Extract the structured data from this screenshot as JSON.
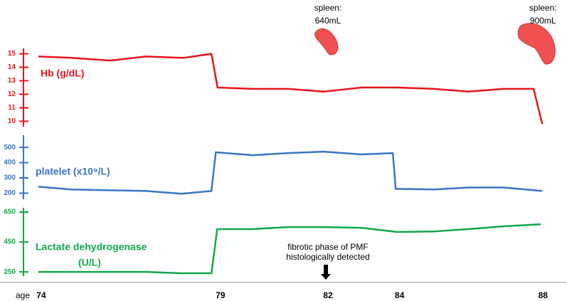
{
  "x_axis": {
    "label": "age",
    "ticks": [
      74,
      79,
      82,
      84,
      88
    ],
    "lim": [
      72.85,
      88.67
    ]
  },
  "annotations": [
    {
      "lines": [
        "spleen:",
        "640mL"
      ],
      "x": 82
    },
    {
      "lines": [
        "spleen:",
        "900mL"
      ],
      "x": 88
    },
    {
      "lines": [
        "fibrotic phase of PMF",
        "histologically detected"
      ],
      "x": 82
    }
  ],
  "chart_data": [
    {
      "type": "line",
      "ylabel": [
        "Hb  (g/dL)"
      ],
      "color": "#e8141c",
      "x": [
        73.92,
        74.83,
        75.93,
        76.92,
        77.97,
        78.75,
        78.92,
        79.9,
        80.89,
        81.88,
        82.94,
        83.93,
        84.96,
        85.91,
        86.9,
        87.74,
        87.98
      ],
      "values": [
        14.8,
        14.7,
        14.5,
        14.8,
        14.7,
        15.0,
        12.5,
        12.4,
        12.4,
        12.2,
        12.5,
        12.5,
        12.4,
        12.2,
        12.4,
        12.4,
        9.8
      ],
      "ylim": [
        9.6,
        15.4
      ],
      "yticks": [
        10,
        11,
        12,
        13,
        14,
        15
      ]
    },
    {
      "type": "line",
      "ylabel": [
        "platelet  (x10⁹/L)"
      ],
      "color": "#3a75c4",
      "x": [
        73.92,
        74.83,
        75.93,
        76.92,
        77.92,
        78.75,
        78.87,
        79.9,
        80.89,
        81.88,
        82.94,
        83.81,
        83.89,
        84.96,
        85.91,
        86.9,
        87.98
      ],
      "values": [
        242,
        224,
        219,
        214,
        196,
        214,
        468,
        449,
        463,
        472,
        454,
        463,
        228,
        224,
        237,
        237,
        214
      ],
      "ylim": [
        160,
        580
      ],
      "yticks": [
        200,
        300,
        400,
        500
      ]
    },
    {
      "type": "line",
      "ylabel": [
        "Lactate dehydrogenase",
        "(U/L)"
      ],
      "color": "#13a84a",
      "x": [
        73.92,
        74.83,
        75.93,
        76.92,
        77.92,
        78.75,
        78.91,
        79.9,
        80.89,
        81.88,
        82.94,
        83.93,
        84.96,
        85.91,
        86.9,
        87.94
      ],
      "values": [
        250,
        250,
        250,
        250,
        241,
        241,
        536,
        536,
        550,
        550,
        545,
        517,
        521,
        536,
        555,
        569
      ],
      "ylim": [
        222,
        679
      ],
      "yticks": [
        250,
        450,
        650
      ]
    }
  ]
}
